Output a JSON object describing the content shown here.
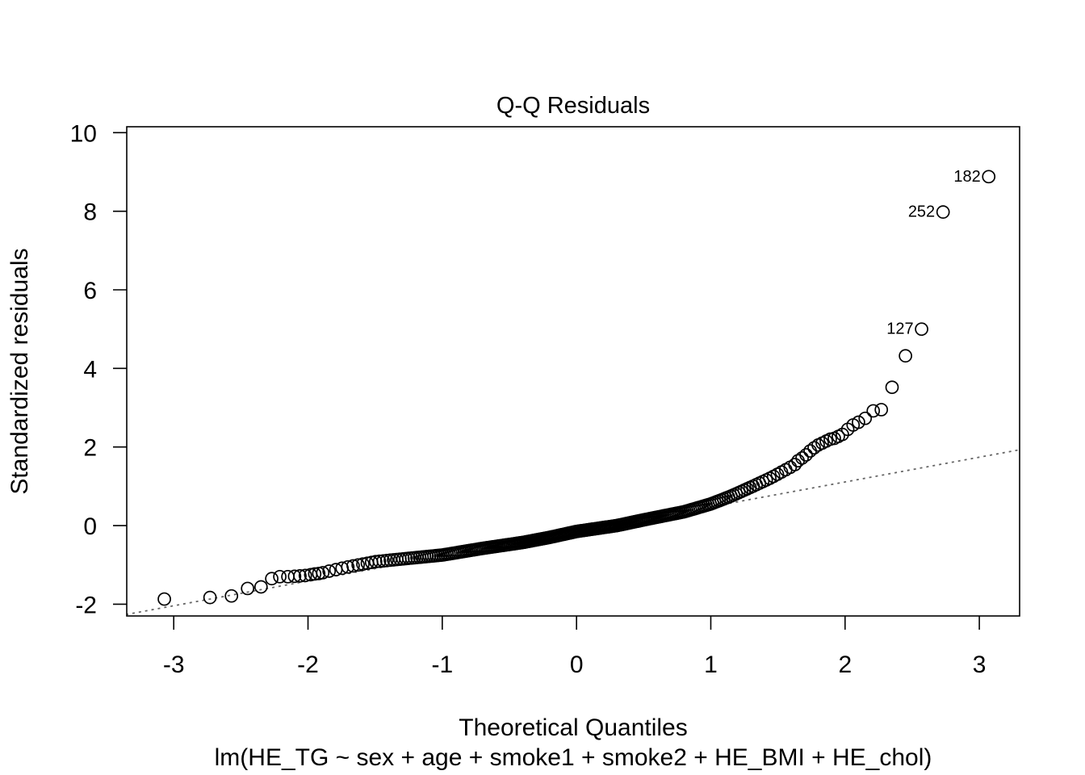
{
  "chart_data": {
    "type": "scatter",
    "title": "Q-Q Residuals",
    "xlabel": "Theoretical Quantiles",
    "subtitle": "lm(HE_TG ~ sex + age + smoke1 + smoke2 + HE_BMI + HE_chol)",
    "ylabel": "Standardized residuals",
    "xlim": [
      -3.35,
      3.3
    ],
    "ylim": [
      -2.3,
      10.15
    ],
    "xticks": [
      -3,
      -2,
      -1,
      0,
      1,
      2,
      3
    ],
    "xtick_labels": [
      "-3",
      "-2",
      "-1",
      "0",
      "1",
      "2",
      "3"
    ],
    "yticks": [
      -2,
      0,
      2,
      4,
      6,
      8,
      10
    ],
    "ytick_labels": [
      "-2",
      "0",
      "2",
      "4",
      "6",
      "8",
      "10"
    ],
    "reference_line": {
      "slope": 0.63,
      "intercept": -0.15,
      "style": "dotted",
      "color": "#666666"
    },
    "marker": {
      "shape": "open-circle",
      "color": "#000000"
    },
    "grid": false,
    "n_points": 260,
    "outliers": [
      {
        "label": "182",
        "x": 3.07,
        "y": 8.88
      },
      {
        "label": "252",
        "x": 2.73,
        "y": 7.98
      },
      {
        "label": "127",
        "x": 2.57,
        "y": 5.0
      }
    ],
    "upper_tail": [
      {
        "x": 2.45,
        "y": 4.32
      },
      {
        "x": 2.35,
        "y": 3.52
      },
      {
        "x": 2.27,
        "y": 2.95
      },
      {
        "x": 2.21,
        "y": 2.92
      },
      {
        "x": 2.15,
        "y": 2.73
      },
      {
        "x": 2.1,
        "y": 2.63
      },
      {
        "x": 2.06,
        "y": 2.56
      },
      {
        "x": 2.02,
        "y": 2.45
      },
      {
        "x": 1.98,
        "y": 2.32
      },
      {
        "x": 1.95,
        "y": 2.27
      },
      {
        "x": 1.92,
        "y": 2.22
      },
      {
        "x": 1.89,
        "y": 2.2
      },
      {
        "x": 1.86,
        "y": 2.15
      },
      {
        "x": 1.83,
        "y": 2.1
      },
      {
        "x": 1.8,
        "y": 2.05
      },
      {
        "x": 1.77,
        "y": 1.98
      },
      {
        "x": 1.74,
        "y": 1.9
      },
      {
        "x": 1.71,
        "y": 1.8
      },
      {
        "x": 1.68,
        "y": 1.72
      },
      {
        "x": 1.65,
        "y": 1.65
      }
    ],
    "lower_tail": [
      {
        "x": -3.07,
        "y": -1.87
      },
      {
        "x": -2.73,
        "y": -1.83
      },
      {
        "x": -2.57,
        "y": -1.79
      },
      {
        "x": -2.45,
        "y": -1.6
      },
      {
        "x": -2.35,
        "y": -1.56
      },
      {
        "x": -2.27,
        "y": -1.35
      },
      {
        "x": -2.21,
        "y": -1.3
      },
      {
        "x": -2.15,
        "y": -1.3
      },
      {
        "x": -2.1,
        "y": -1.29
      },
      {
        "x": -2.06,
        "y": -1.28
      },
      {
        "x": -2.02,
        "y": -1.27
      },
      {
        "x": -1.98,
        "y": -1.25
      },
      {
        "x": -1.95,
        "y": -1.23
      },
      {
        "x": -1.92,
        "y": -1.22
      },
      {
        "x": -1.89,
        "y": -1.2
      }
    ],
    "body_curve": [
      {
        "x": -1.87,
        "y": -1.18
      },
      {
        "x": -1.7,
        "y": -1.05
      },
      {
        "x": -1.5,
        "y": -0.92
      },
      {
        "x": -1.3,
        "y": -0.85
      },
      {
        "x": -1.0,
        "y": -0.75
      },
      {
        "x": -0.7,
        "y": -0.58
      },
      {
        "x": -0.4,
        "y": -0.43
      },
      {
        "x": -0.2,
        "y": -0.3
      },
      {
        "x": 0.0,
        "y": -0.15
      },
      {
        "x": 0.3,
        "y": 0.0
      },
      {
        "x": 0.55,
        "y": 0.18
      },
      {
        "x": 0.8,
        "y": 0.35
      },
      {
        "x": 1.0,
        "y": 0.55
      },
      {
        "x": 1.15,
        "y": 0.75
      },
      {
        "x": 1.3,
        "y": 0.98
      },
      {
        "x": 1.45,
        "y": 1.22
      },
      {
        "x": 1.6,
        "y": 1.5
      },
      {
        "x": 1.65,
        "y": 1.6
      }
    ]
  }
}
